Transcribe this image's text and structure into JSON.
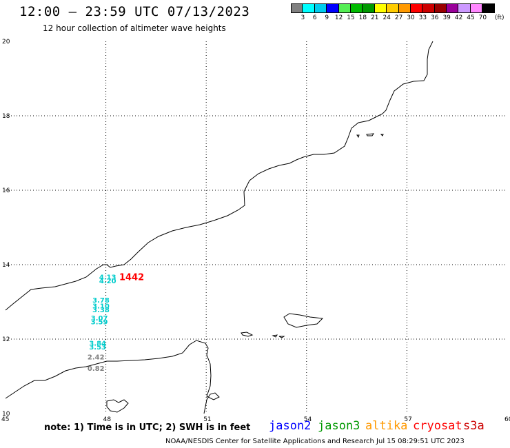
{
  "title": "12:00 — 23:59 UTC 07/13/2023",
  "subtitle": "12 hour collection of altimeter wave heights",
  "legend": {
    "colors": [
      "#808080",
      "#00ffff",
      "#00ccee",
      "#0000ff",
      "#55ee55",
      "#00bb00",
      "#009900",
      "#ffff00",
      "#ffcc00",
      "#ff9900",
      "#ff0000",
      "#cc0000",
      "#990000",
      "#990099",
      "#cc99ff",
      "#ff88ff",
      "#000000"
    ],
    "labels": [
      "3",
      "6",
      "9",
      "12",
      "15",
      "18",
      "21",
      "24",
      "27",
      "30",
      "33",
      "36",
      "39",
      "42",
      "45",
      "70"
    ],
    "unit": "(ft)"
  },
  "axes": {
    "lon_ticks": [
      "45",
      "48",
      "51",
      "54",
      "57",
      "60"
    ],
    "lat_ticks": [
      "20",
      "18",
      "16",
      "14",
      "12",
      "10"
    ]
  },
  "observations": [
    {
      "value": "4.13",
      "lon": 47.8,
      "lat": 13.6,
      "color": "#00cccc"
    },
    {
      "value": "4.20",
      "lon": 47.8,
      "lat": 13.5,
      "color": "#00cccc"
    },
    {
      "value": "1442",
      "lon": 48.4,
      "lat": 13.58,
      "color": "#ff0000"
    },
    {
      "value": "3.78",
      "lon": 47.6,
      "lat": 12.98,
      "color": "#00cccc"
    },
    {
      "value": "3.10",
      "lon": 47.6,
      "lat": 12.82,
      "color": "#00cccc"
    },
    {
      "value": "3.38",
      "lon": 47.6,
      "lat": 12.72,
      "color": "#00cccc"
    },
    {
      "value": "3.07",
      "lon": 47.55,
      "lat": 12.5,
      "color": "#00cccc"
    },
    {
      "value": "3.59",
      "lon": 47.55,
      "lat": 12.4,
      "color": "#00cccc"
    },
    {
      "value": "3.84",
      "lon": 47.5,
      "lat": 11.82,
      "color": "#00cccc"
    },
    {
      "value": "3.53",
      "lon": 47.5,
      "lat": 11.72,
      "color": "#00cccc"
    },
    {
      "value": "2.42",
      "lon": 47.45,
      "lat": 11.45,
      "color": "#808080"
    },
    {
      "value": "0.82",
      "lon": 47.45,
      "lat": 11.15,
      "color": "#808080"
    }
  ],
  "footer": {
    "note": "note: 1) Time is in UTC; 2) SWH is in feet",
    "satellites": [
      {
        "name": "jason2",
        "color": "#0000ff"
      },
      {
        "name": "jason3",
        "color": "#009900"
      },
      {
        "name": "altika",
        "color": "#ff9900"
      },
      {
        "name": "cryosat",
        "color": "#ff0000"
      },
      {
        "name": "s3a",
        "color": "#cc0000"
      }
    ],
    "credit": "NOAA/NESDIS Center for Satellite Applications and Research   Jul 15 08:29:51 UTC 2023"
  }
}
